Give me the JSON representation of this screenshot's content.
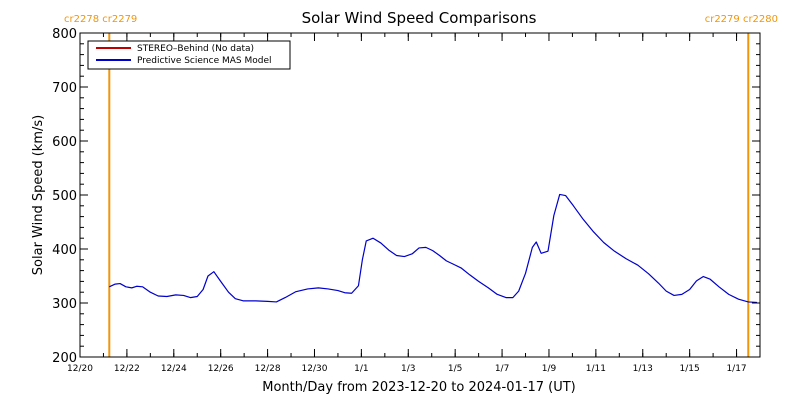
{
  "chart_data": {
    "type": "line",
    "title": "Solar Wind Speed Comparisons",
    "xlabel": "Month/Day from 2023-12-20 to 2024-01-17 (UT)",
    "ylabel": "Solar Wind Speed (km/s)",
    "xlim": [
      "2023-12-20",
      "2024-01-18"
    ],
    "ylim": [
      200,
      800
    ],
    "yticks": [
      200,
      300,
      400,
      500,
      600,
      700,
      800
    ],
    "xticks": [
      {
        "date": "2023-12-20",
        "label": "12/20"
      },
      {
        "date": "2023-12-22",
        "label": "12/22"
      },
      {
        "date": "2023-12-24",
        "label": "12/24"
      },
      {
        "date": "2023-12-26",
        "label": "12/26"
      },
      {
        "date": "2023-12-28",
        "label": "12/28"
      },
      {
        "date": "2023-12-30",
        "label": "12/30"
      },
      {
        "date": "2024-01-01",
        "label": "1/1"
      },
      {
        "date": "2024-01-03",
        "label": "1/3"
      },
      {
        "date": "2024-01-05",
        "label": "1/5"
      },
      {
        "date": "2024-01-07",
        "label": "1/7"
      },
      {
        "date": "2024-01-09",
        "label": "1/9"
      },
      {
        "date": "2024-01-11",
        "label": "1/11"
      },
      {
        "date": "2024-01-13",
        "label": "1/13"
      },
      {
        "date": "2024-01-15",
        "label": "1/15"
      },
      {
        "date": "2024-01-17",
        "label": "1/17"
      }
    ],
    "grid": false,
    "legend_position": "top-left",
    "series": [
      {
        "name": "STEREO–Behind (No data)",
        "color": "#c00000",
        "points": []
      },
      {
        "name": "Predictive Science MAS Model",
        "color": "#0000cc",
        "points": [
          [
            "2023-12-21 06:00",
            330
          ],
          [
            "2023-12-21 12:00",
            335
          ],
          [
            "2023-12-21 17:00",
            336
          ],
          [
            "2023-12-21 23:00",
            330
          ],
          [
            "2023-12-22 05:00",
            328
          ],
          [
            "2023-12-22 10:00",
            331
          ],
          [
            "2023-12-22 16:00",
            330
          ],
          [
            "2023-12-23 00:00",
            320
          ],
          [
            "2023-12-23 08:00",
            313
          ],
          [
            "2023-12-23 17:00",
            312
          ],
          [
            "2023-12-24 02:00",
            315
          ],
          [
            "2023-12-24 10:00",
            314
          ],
          [
            "2023-12-24 17:00",
            310
          ],
          [
            "2023-12-25 00:00",
            312
          ],
          [
            "2023-12-25 06:00",
            325
          ],
          [
            "2023-12-25 11:00",
            350
          ],
          [
            "2023-12-25 17:00",
            358
          ],
          [
            "2023-12-26 00:00",
            340
          ],
          [
            "2023-12-26 08:00",
            320
          ],
          [
            "2023-12-26 15:00",
            308
          ],
          [
            "2023-12-26 23:00",
            304
          ],
          [
            "2023-12-27 12:00",
            304
          ],
          [
            "2023-12-28 00:00",
            303
          ],
          [
            "2023-12-28 09:00",
            302
          ],
          [
            "2023-12-28 18:00",
            310
          ],
          [
            "2023-12-29 05:00",
            321
          ],
          [
            "2023-12-29 17:00",
            326
          ],
          [
            "2023-12-30 04:00",
            328
          ],
          [
            "2023-12-30 14:00",
            326
          ],
          [
            "2023-12-31 00:00",
            323
          ],
          [
            "2023-12-31 07:00",
            319
          ],
          [
            "2023-12-31 14:00",
            318
          ],
          [
            "2023-12-31 21:00",
            332
          ],
          [
            "2024-01-01 01:00",
            380
          ],
          [
            "2024-01-01 05:00",
            415
          ],
          [
            "2024-01-01 12:00",
            420
          ],
          [
            "2024-01-01 20:00",
            411
          ],
          [
            "2024-01-02 04:00",
            398
          ],
          [
            "2024-01-02 12:00",
            388
          ],
          [
            "2024-01-02 20:00",
            386
          ],
          [
            "2024-01-03 04:00",
            391
          ],
          [
            "2024-01-03 11:00",
            402
          ],
          [
            "2024-01-03 18:00",
            403
          ],
          [
            "2024-01-04 01:00",
            397
          ],
          [
            "2024-01-04 08:00",
            388
          ],
          [
            "2024-01-04 15:00",
            378
          ],
          [
            "2024-01-04 22:00",
            372
          ],
          [
            "2024-01-05 06:00",
            365
          ],
          [
            "2024-01-05 15:00",
            352
          ],
          [
            "2024-01-06 00:00",
            340
          ],
          [
            "2024-01-06 10:00",
            328
          ],
          [
            "2024-01-06 19:00",
            316
          ],
          [
            "2024-01-07 04:00",
            310
          ],
          [
            "2024-01-07 11:00",
            310
          ],
          [
            "2024-01-07 17:00",
            322
          ],
          [
            "2024-01-08 00:00",
            355
          ],
          [
            "2024-01-08 07:00",
            403
          ],
          [
            "2024-01-08 11:00",
            413
          ],
          [
            "2024-01-08 16:00",
            392
          ],
          [
            "2024-01-08 23:00",
            396
          ],
          [
            "2024-01-09 05:00",
            462
          ],
          [
            "2024-01-09 11:00",
            501
          ],
          [
            "2024-01-09 17:00",
            499
          ],
          [
            "2024-01-10 01:00",
            480
          ],
          [
            "2024-01-10 11:00",
            455
          ],
          [
            "2024-01-10 21:00",
            433
          ],
          [
            "2024-01-11 08:00",
            412
          ],
          [
            "2024-01-11 19:00",
            396
          ],
          [
            "2024-01-12 07:00",
            382
          ],
          [
            "2024-01-12 19:00",
            370
          ],
          [
            "2024-01-13 06:00",
            354
          ],
          [
            "2024-01-13 16:00",
            337
          ],
          [
            "2024-01-14 00:00",
            322
          ],
          [
            "2024-01-14 08:00",
            314
          ],
          [
            "2024-01-14 16:00",
            316
          ],
          [
            "2024-01-15 00:00",
            325
          ],
          [
            "2024-01-15 07:00",
            341
          ],
          [
            "2024-01-15 14:00",
            349
          ],
          [
            "2024-01-15 21:00",
            344
          ],
          [
            "2024-01-16 06:00",
            330
          ],
          [
            "2024-01-16 16:00",
            316
          ],
          [
            "2024-01-17 02:00",
            307
          ],
          [
            "2024-01-17 12:00",
            302
          ],
          [
            "2024-01-17 21:00",
            301
          ]
        ]
      }
    ],
    "markers": [
      {
        "date": "2023-12-21 06:00",
        "label": "cr2278 cr2279",
        "color": "#f0960a"
      },
      {
        "date": "2024-01-17 12:00",
        "label": "cr2279 cr2280",
        "color": "#f0960a"
      }
    ]
  }
}
